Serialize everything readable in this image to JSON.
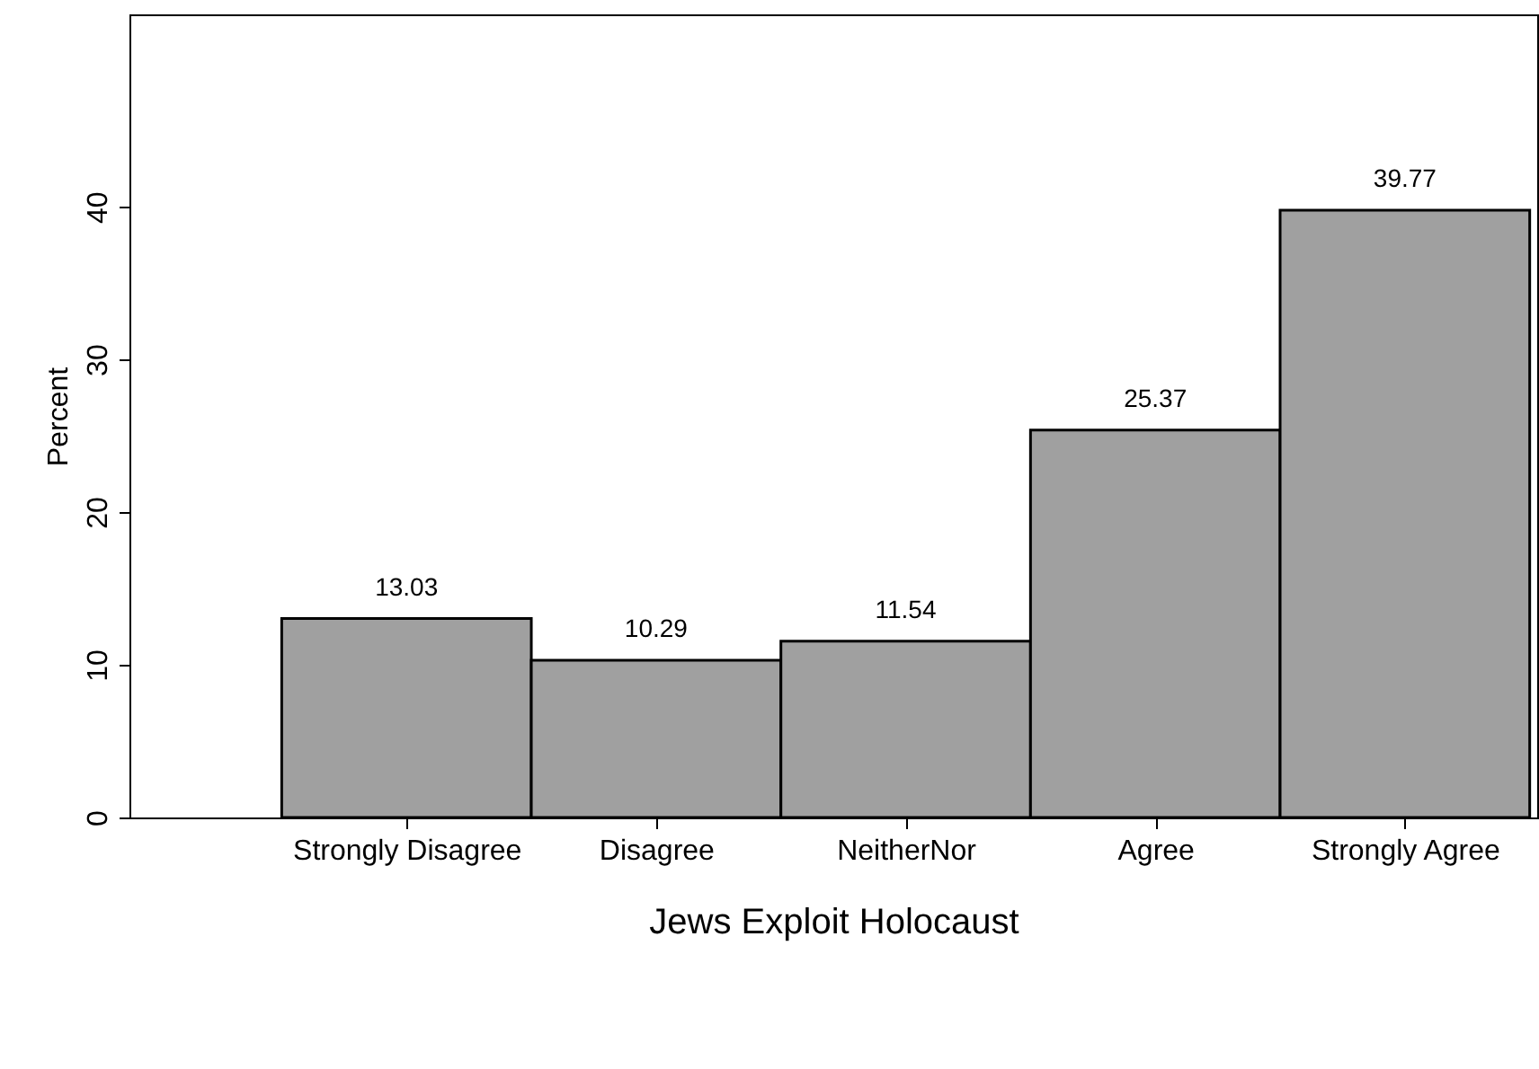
{
  "chart_data": {
    "type": "bar",
    "xlabel": "Jews Exploit Holocaust",
    "ylabel": "Percent",
    "categories": [
      "Strongly Disagree",
      "Disagree",
      "NeitherNor",
      "Agree",
      "Strongly Agree"
    ],
    "values": [
      13.03,
      10.29,
      11.54,
      25.37,
      39.77
    ],
    "color": "#a0a0a0",
    "ylim": [
      0,
      52.6
    ],
    "yticks": [
      0,
      10,
      20,
      30,
      40
    ],
    "data_labels": true,
    "grid": false
  }
}
